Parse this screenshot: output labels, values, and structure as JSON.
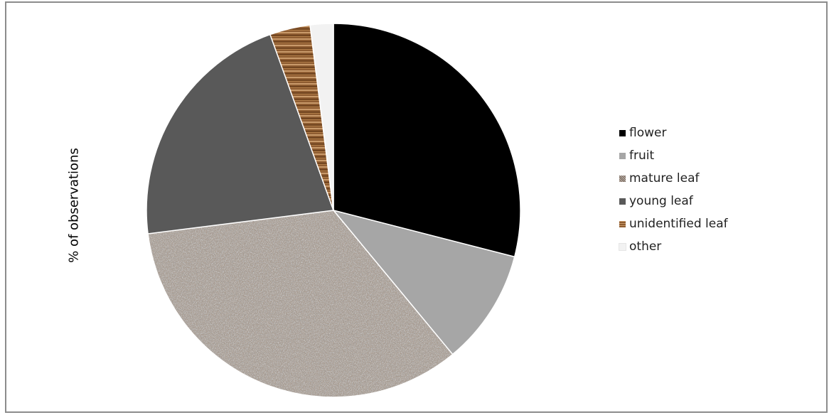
{
  "chart_data": {
    "type": "pie",
    "title": "",
    "ylabel": "% of observations",
    "legend_position": "right",
    "slices": [
      {
        "label": "flower",
        "value": 29.0,
        "color": "#000000",
        "pattern": "solid"
      },
      {
        "label": "fruit",
        "value": 10.0,
        "color": "#a6a6a6",
        "pattern": "solid"
      },
      {
        "label": "mature leaf",
        "value": 34.0,
        "color": "#a89a8e",
        "pattern": "speckle"
      },
      {
        "label": "young leaf",
        "value": 21.5,
        "color": "#595959",
        "pattern": "solid"
      },
      {
        "label": "unidentified leaf",
        "value": 3.5,
        "color": "#8b5a2b",
        "pattern": "wood"
      },
      {
        "label": "other",
        "value": 2.0,
        "color": "#f2f2f2",
        "pattern": "solid"
      }
    ]
  }
}
